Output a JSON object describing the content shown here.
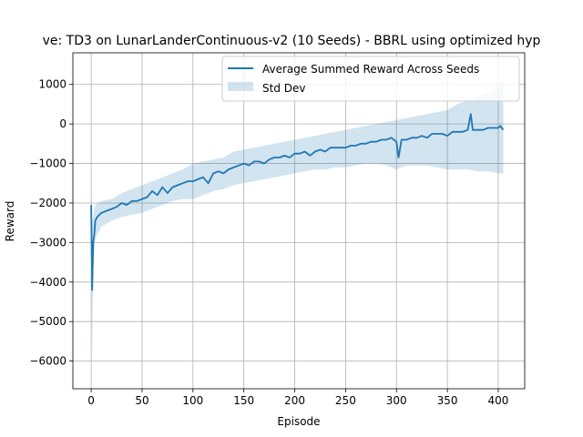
{
  "chart_data": {
    "type": "line",
    "title": "ve: TD3 on LunarLanderContinuous-v2 (10 Seeds) - BBRL using optimized hyp",
    "xlabel": "Episode",
    "ylabel": "Reward",
    "xlim": [
      -18,
      426
    ],
    "ylim": [
      -6700,
      1800
    ],
    "xticks": [
      0,
      50,
      100,
      150,
      200,
      250,
      300,
      350,
      400
    ],
    "yticks": [
      -6000,
      -5000,
      -4000,
      -3000,
      -2000,
      -1000,
      0,
      1000
    ],
    "grid": true,
    "legend_position": "top-right",
    "series": [
      {
        "name": "Average Summed Reward Across Seeds",
        "kind": "line",
        "color": "#1f77b4",
        "x": [
          0,
          1,
          2,
          3,
          4,
          6,
          8,
          10,
          15,
          20,
          25,
          30,
          35,
          40,
          45,
          50,
          55,
          60,
          65,
          70,
          75,
          80,
          85,
          90,
          95,
          100,
          105,
          110,
          115,
          120,
          125,
          130,
          135,
          140,
          145,
          150,
          155,
          160,
          165,
          170,
          175,
          180,
          185,
          190,
          195,
          200,
          205,
          210,
          215,
          220,
          225,
          230,
          235,
          240,
          245,
          250,
          255,
          260,
          265,
          270,
          275,
          280,
          285,
          290,
          295,
          300,
          302,
          305,
          310,
          315,
          320,
          325,
          330,
          335,
          340,
          345,
          350,
          355,
          360,
          365,
          370,
          373,
          375,
          380,
          385,
          390,
          395,
          400,
          402,
          405
        ],
        "y": [
          -2050,
          -4200,
          -3000,
          -2800,
          -2450,
          -2350,
          -2300,
          -2250,
          -2200,
          -2150,
          -2100,
          -2000,
          -2050,
          -1950,
          -1950,
          -1900,
          -1850,
          -1700,
          -1800,
          -1600,
          -1750,
          -1600,
          -1550,
          -1500,
          -1450,
          -1450,
          -1400,
          -1350,
          -1500,
          -1250,
          -1200,
          -1250,
          -1150,
          -1100,
          -1050,
          -1000,
          -1050,
          -950,
          -950,
          -1000,
          -900,
          -850,
          -850,
          -800,
          -850,
          -750,
          -750,
          -700,
          -800,
          -700,
          -650,
          -700,
          -600,
          -600,
          -600,
          -600,
          -550,
          -550,
          -500,
          -500,
          -450,
          -450,
          -400,
          -400,
          -350,
          -450,
          -850,
          -400,
          -400,
          -350,
          -350,
          -300,
          -350,
          -250,
          -250,
          -250,
          -300,
          -200,
          -200,
          -200,
          -150,
          250,
          -150,
          -150,
          -150,
          -100,
          -100,
          -100,
          -50,
          -150
        ]
      },
      {
        "name": "Std Dev",
        "kind": "band",
        "color": "#1f77b4",
        "opacity": 0.2,
        "x": [
          0,
          1,
          2,
          4,
          10,
          20,
          30,
          40,
          50,
          60,
          70,
          80,
          90,
          100,
          110,
          120,
          130,
          140,
          150,
          160,
          170,
          180,
          190,
          200,
          210,
          220,
          230,
          240,
          250,
          260,
          270,
          280,
          290,
          300,
          310,
          320,
          330,
          340,
          350,
          360,
          370,
          380,
          390,
          400,
          405
        ],
        "upper": [
          -1900,
          -2500,
          -2300,
          -2050,
          -1950,
          -1900,
          -1750,
          -1650,
          -1550,
          -1450,
          -1350,
          -1250,
          -1150,
          -1000,
          -950,
          -900,
          -850,
          -700,
          -650,
          -600,
          -550,
          -500,
          -450,
          -400,
          -350,
          -300,
          -250,
          -200,
          -150,
          -100,
          -50,
          0,
          50,
          100,
          150,
          200,
          250,
          300,
          350,
          500,
          600,
          700,
          800,
          900,
          1100
        ],
        "lower": [
          -2200,
          -6000,
          -3700,
          -2900,
          -2600,
          -2450,
          -2350,
          -2300,
          -2250,
          -2150,
          -2050,
          -1950,
          -1900,
          -1900,
          -1800,
          -1700,
          -1650,
          -1550,
          -1500,
          -1450,
          -1400,
          -1350,
          -1300,
          -1250,
          -1200,
          -1150,
          -1150,
          -1100,
          -1100,
          -1050,
          -1000,
          -1000,
          -1050,
          -1150,
          -1050,
          -1050,
          -1050,
          -1100,
          -1150,
          -1150,
          -1150,
          -1200,
          -1200,
          -1250,
          -1250
        ]
      }
    ]
  }
}
